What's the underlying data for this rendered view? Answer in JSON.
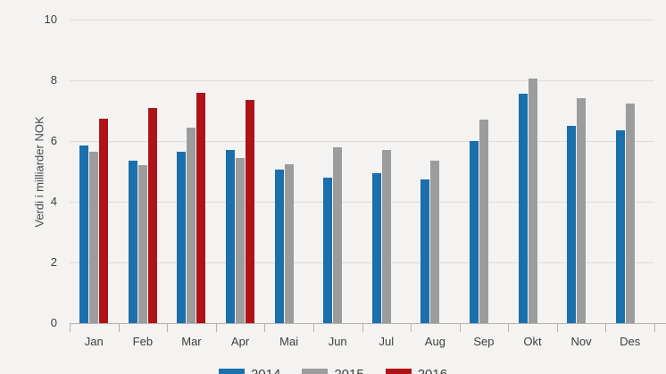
{
  "chart_data": {
    "type": "bar",
    "title": "",
    "ylabel": "Verdi i milliarder NOK",
    "xlabel": "",
    "categories": [
      "Jan",
      "Feb",
      "Mar",
      "Apr",
      "Mai",
      "Jun",
      "Jul",
      "Aug",
      "Sep",
      "Okt",
      "Nov",
      "Des"
    ],
    "series": [
      {
        "name": "2014",
        "color": "#1a6fad",
        "values": [
          5.85,
          5.35,
          5.65,
          5.7,
          5.05,
          4.8,
          4.95,
          4.75,
          6.0,
          7.55,
          6.5,
          6.35
        ]
      },
      {
        "name": "2015",
        "color": "#9c9c9c",
        "values": [
          5.65,
          5.2,
          6.45,
          5.45,
          5.25,
          5.8,
          5.7,
          5.35,
          6.7,
          8.05,
          7.4,
          7.25
        ]
      },
      {
        "name": "2016",
        "color": "#af1317",
        "values": [
          6.75,
          7.1,
          7.6,
          7.35,
          null,
          null,
          null,
          null,
          null,
          null,
          null,
          null
        ]
      }
    ],
    "ylim": [
      0,
      10
    ],
    "yticks": [
      0,
      2,
      4,
      6,
      8,
      10
    ],
    "grid": true,
    "legend_position": "bottom",
    "colors": {
      "background": "#f4f3f1",
      "gridline": "#dddcd9",
      "axis": "#b4b3b0",
      "text": "#3e3e3e"
    }
  }
}
